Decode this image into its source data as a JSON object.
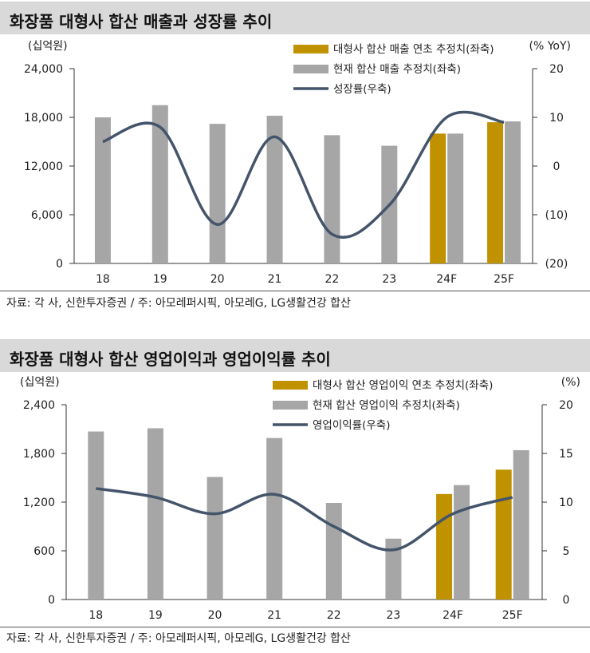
{
  "charts": [
    {
      "title": "화장품 대형사 합산 매출과 성장률 추이",
      "source": "자료: 각 사, 신한투자증권 / 주: 아모레퍼시픽, 아모레G, LG생활건강 합산",
      "chart_data": {
        "type": "bar",
        "categories": [
          "18",
          "19",
          "20",
          "21",
          "22",
          "23",
          "24F",
          "25F"
        ],
        "left_unit": "(십억원)",
        "right_unit": "(% YoY)",
        "ylim": [
          0,
          24000
        ],
        "y2lim": [
          -20,
          20
        ],
        "left_ticks": [
          "24,000",
          "18,000",
          "12,000",
          "6,000",
          "0"
        ],
        "right_ticks": [
          "20",
          "10",
          "0",
          "(10)",
          "(20)"
        ],
        "legend_position": "top-right",
        "series": [
          {
            "name": "대형사 합산 매출 연초 추정치(좌축)",
            "kind": "bar",
            "axis": "left",
            "color": "#c09200",
            "values": [
              null,
              null,
              null,
              null,
              null,
              null,
              16000,
              17400
            ]
          },
          {
            "name": "현재 합산 매출 추정치(좌축)",
            "kind": "bar",
            "axis": "left",
            "color": "#a6a6a6",
            "values": [
              18000,
              19500,
              17200,
              18200,
              15800,
              14500,
              16000,
              17500
            ]
          },
          {
            "name": "성장률(우축)",
            "kind": "line",
            "axis": "right",
            "color": "#44546a",
            "values": [
              5,
              8,
              -12,
              6,
              -14,
              -8,
              10,
              9
            ]
          }
        ]
      }
    },
    {
      "title": "화장품 대형사 합산 영업이익과 영업이익률 추이",
      "source": "자료: 각 사, 신한투자증권 / 주: 아모레퍼시픽, 아모레G, LG생활건강 합산",
      "chart_data": {
        "type": "bar",
        "categories": [
          "18",
          "19",
          "20",
          "21",
          "22",
          "23",
          "24F",
          "25F"
        ],
        "left_unit": "(십억원)",
        "right_unit": "(%)",
        "ylim": [
          0,
          2400
        ],
        "y2lim": [
          0,
          20
        ],
        "left_ticks": [
          "2,400",
          "1,800",
          "1,200",
          "600",
          "0"
        ],
        "right_ticks": [
          "20",
          "15",
          "10",
          "5",
          "0"
        ],
        "legend_position": "top-right",
        "series": [
          {
            "name": "대형사 합산 영업이익 연초 추정치(좌축)",
            "kind": "bar",
            "axis": "left",
            "color": "#c09200",
            "values": [
              null,
              null,
              null,
              null,
              null,
              null,
              1300,
              1600
            ]
          },
          {
            "name": "현재 합산 영업이익 추정치(좌축)",
            "kind": "bar",
            "axis": "left",
            "color": "#a6a6a6",
            "values": [
              2070,
              2110,
              1510,
              1990,
              1190,
              750,
              1410,
              1840
            ]
          },
          {
            "name": "영업이익률(우축)",
            "kind": "line",
            "axis": "right",
            "color": "#44546a",
            "values": [
              11.4,
              10.5,
              8.8,
              10.8,
              7.5,
              5.1,
              8.8,
              10.5
            ]
          }
        ]
      }
    }
  ]
}
